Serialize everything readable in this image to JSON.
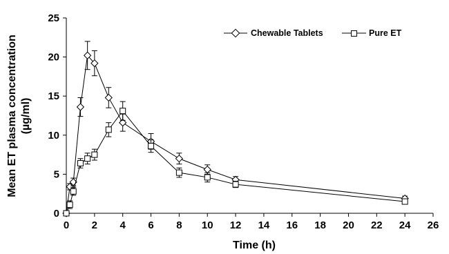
{
  "chart_data": {
    "type": "line",
    "title": "",
    "xlabel": "Time (h)",
    "ylabel_line1": "Mean ET plasma concentration",
    "ylabel_line2": "(µg/ml)",
    "xlim": [
      0,
      26
    ],
    "ylim": [
      0,
      25
    ],
    "xticks": [
      0,
      2,
      4,
      6,
      8,
      10,
      12,
      14,
      16,
      18,
      20,
      22,
      24,
      26
    ],
    "yticks": [
      0,
      5,
      10,
      15,
      20,
      25
    ],
    "grid": false,
    "legend_position": "top-right",
    "series": [
      {
        "name": "Chewable Tablets",
        "marker": "diamond",
        "x": [
          0,
          0.25,
          0.5,
          1,
          1.5,
          2,
          3,
          4,
          6,
          8,
          10,
          12,
          24
        ],
        "y": [
          0,
          3.4,
          4.0,
          13.6,
          20.2,
          19.2,
          14.8,
          11.6,
          9.2,
          7.0,
          5.6,
          4.3,
          1.9
        ],
        "err": [
          0,
          0.4,
          0.5,
          1.2,
          1.8,
          1.6,
          1.3,
          1.1,
          1.0,
          0.7,
          0.6,
          0.4,
          0.3
        ]
      },
      {
        "name": "Pure ET",
        "marker": "square",
        "x": [
          0,
          0.25,
          0.5,
          1,
          1.5,
          2,
          3,
          4,
          6,
          8,
          10,
          12,
          24
        ],
        "y": [
          0,
          1.1,
          2.8,
          6.4,
          7.0,
          7.5,
          10.7,
          13.1,
          8.6,
          5.2,
          4.6,
          3.7,
          1.5
        ],
        "err": [
          0,
          0.5,
          0.5,
          0.6,
          0.7,
          0.7,
          0.9,
          1.2,
          0.8,
          0.6,
          0.6,
          0.4,
          0.3
        ]
      }
    ]
  }
}
